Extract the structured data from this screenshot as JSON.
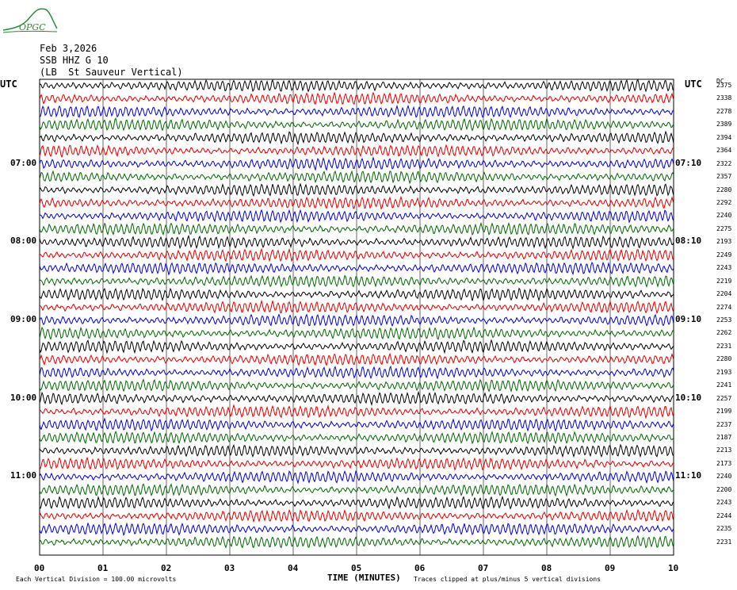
{
  "header": {
    "date": "Feb 3,2026",
    "station": "SSB HHZ G 10",
    "station_name": "(LB  St Sauveur Vertical)",
    "utc_left": "UTC",
    "utc_right": "UTC",
    "counts_header": "DC"
  },
  "logo": {
    "text": "OPGC",
    "color": "#2e8b3a"
  },
  "chart_data": {
    "type": "line",
    "title": "",
    "xlabel": "TIME (MINUTES)",
    "xlim": [
      0,
      10
    ],
    "x_ticks": [
      "00",
      "01",
      "02",
      "03",
      "04",
      "05",
      "06",
      "07",
      "08",
      "09",
      "10"
    ],
    "trace_colors": [
      "#000000",
      "#dd0000",
      "#0000cc",
      "#006600"
    ],
    "left_time_labels": [
      {
        "row": 6,
        "label": "07:00"
      },
      {
        "row": 12,
        "label": "08:00"
      },
      {
        "row": 18,
        "label": "09:00"
      },
      {
        "row": 24,
        "label": "10:00"
      },
      {
        "row": 30,
        "label": "11:00"
      }
    ],
    "right_time_labels": [
      {
        "row": 6,
        "label": "07:10"
      },
      {
        "row": 12,
        "label": "08:10"
      },
      {
        "row": 18,
        "label": "09:10"
      },
      {
        "row": 24,
        "label": "10:10"
      },
      {
        "row": 30,
        "label": "11:10"
      }
    ],
    "trace_offsets": [
      "2375",
      "2338",
      "2278",
      "2389",
      "2394",
      "2364",
      "2322",
      "2357",
      "2280",
      "2292",
      "2240",
      "2275",
      "2193",
      "2249",
      "2243",
      "2219",
      "2204",
      "2274",
      "2253",
      "2262",
      "2231",
      "2280",
      "2193",
      "2241",
      "2257",
      "2199",
      "2237",
      "2187",
      "2213",
      "2173",
      "2240",
      "2200",
      "2243",
      "2244",
      "2235",
      "2231"
    ],
    "footer_left": "Each Vertical Division =  100.00 microvolts",
    "footer_right": "Traces clipped at plus/minus 5 vertical divisions"
  }
}
